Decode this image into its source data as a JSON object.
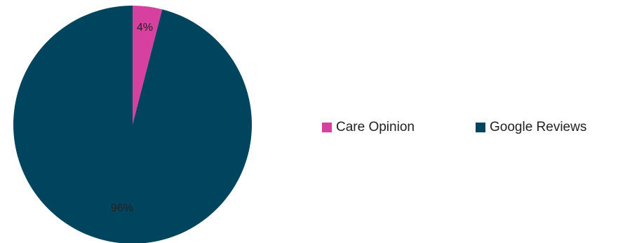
{
  "chart_data": {
    "type": "pie",
    "title": "",
    "legend_position": "right",
    "slices": [
      {
        "name": "Care Opinion",
        "value": 4,
        "label": "4%",
        "color": "#d6409f"
      },
      {
        "name": "Google Reviews",
        "value": 96,
        "label": "96%",
        "color": "#00445e"
      }
    ]
  }
}
